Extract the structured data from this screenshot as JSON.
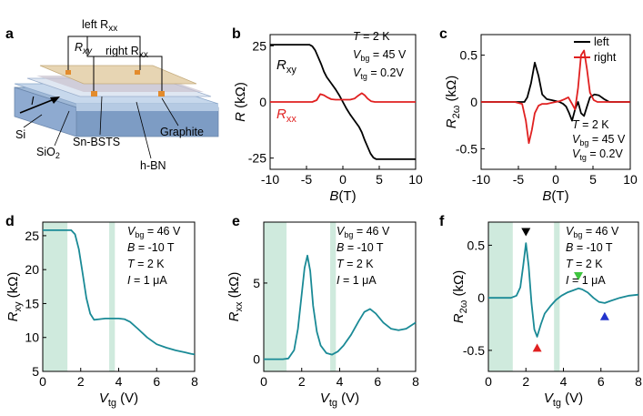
{
  "panel_a": {
    "label": "a",
    "texts": {
      "left_rxx": "left R",
      "left_rxx_sub": "xx",
      "rxy": "R",
      "rxy_sub": "xy",
      "right_rxx": "right R",
      "right_rxx_sub": "xx",
      "si": "Si",
      "sio2": "SiO",
      "sio2_sub": "2",
      "snbsts": "Sn-BSTS",
      "hbn": "h-BN",
      "graphite": "Graphite",
      "current_symbol": "I"
    },
    "colors": {
      "substrate": "#9fb8d6",
      "oxide": "#c7d8ec",
      "hbn": "#dfe7f2",
      "film": "#e7d5b3",
      "contact": "#e38b2c"
    }
  },
  "chart_data": [
    {
      "panel": "b",
      "type": "line",
      "xlabel": "B",
      "xlabel_unit": "(T)",
      "ylabel": "R",
      "ylabel_unit": "(kΩ)",
      "xlim": [
        -10,
        10
      ],
      "ylim": [
        -30,
        30
      ],
      "xticks": [
        -10,
        -5,
        0,
        5,
        10
      ],
      "yticks": [
        -25,
        0,
        25
      ],
      "annotations": [
        "T = 2 K",
        "V_bg = 45 V",
        "V_tg = 0.2V"
      ],
      "series": [
        {
          "name": "R_xy",
          "color": "#000000",
          "x": [
            -10,
            -4.6,
            -4.2,
            -3.8,
            -3.4,
            -3.0,
            -2.6,
            -2.2,
            -1.6,
            -1.0,
            -0.5,
            0,
            0.5,
            1.0,
            1.6,
            2.2,
            2.6,
            3.0,
            3.4,
            3.8,
            4.2,
            4.6,
            10
          ],
          "y": [
            25.5,
            25.5,
            24.8,
            23,
            20,
            17,
            13.5,
            11,
            8.3,
            5.6,
            3,
            0,
            -3,
            -5.6,
            -8.3,
            -11,
            -13.5,
            -17,
            -20,
            -23,
            -24.8,
            -25.5,
            -25.5
          ]
        },
        {
          "name": "R_xx",
          "color": "#e02020",
          "x": [
            -10,
            -4.2,
            -3.6,
            -3.1,
            -2.6,
            -2.1,
            -1.6,
            -1.0,
            0,
            1.0,
            1.6,
            2.1,
            2.6,
            3.0,
            3.4,
            3.9,
            4.4,
            10
          ],
          "y": [
            0,
            0,
            0.8,
            3.5,
            3.0,
            2.0,
            1.2,
            1.0,
            1.0,
            1.0,
            1.5,
            2.8,
            3.9,
            3.0,
            1.5,
            0.3,
            0,
            0
          ]
        }
      ]
    },
    {
      "panel": "c",
      "type": "line",
      "xlabel": "B",
      "xlabel_unit": "(T)",
      "ylabel": "R",
      "ylabel_sub": "2ω",
      "ylabel_unit": "(kΩ)",
      "xlim": [
        -10,
        10
      ],
      "ylim": [
        -0.72,
        0.72
      ],
      "xticks": [
        -10,
        -5,
        0,
        5,
        10
      ],
      "yticks": [
        -0.5,
        0.0,
        0.5
      ],
      "legend": {
        "position": "top-right"
      },
      "annotations": [
        "T = 2 K",
        "V_bg = 45 V",
        "V_tg = 0.2V"
      ],
      "series": [
        {
          "name": "left",
          "color": "#000000",
          "x": [
            -10,
            -5,
            -4.2,
            -3.8,
            -3.3,
            -2.8,
            -2.3,
            -1.8,
            -1.2,
            -0.6,
            0,
            0.5,
            1.0,
            1.4,
            1.8,
            2.2,
            2.6,
            3.0,
            3.4,
            3.8,
            4.2,
            4.6,
            5.2,
            5.8,
            6.5,
            7.2,
            10
          ],
          "y": [
            0,
            0,
            0,
            0.05,
            0.2,
            0.42,
            0.28,
            0.08,
            0.03,
            0.02,
            0.01,
            0,
            -0.02,
            -0.05,
            -0.12,
            -0.2,
            -0.08,
            0,
            -0.12,
            -0.15,
            -0.05,
            0.05,
            0.08,
            0.07,
            0.03,
            0,
            0
          ]
        },
        {
          "name": "right",
          "color": "#e02020",
          "x": [
            -10,
            -5.5,
            -4.5,
            -4.0,
            -3.6,
            -3.2,
            -2.8,
            -2.3,
            -1.8,
            -1.2,
            -0.6,
            0,
            0.6,
            1.2,
            1.7,
            2.2,
            2.6,
            3.0,
            3.4,
            3.8,
            4.2,
            4.6,
            5.1,
            5.6,
            6.2,
            7.0,
            10
          ],
          "y": [
            0,
            0,
            -0.02,
            -0.2,
            -0.44,
            -0.3,
            -0.12,
            -0.04,
            -0.02,
            -0.02,
            -0.01,
            0,
            0.01,
            0.03,
            0.05,
            -0.02,
            -0.08,
            0.15,
            0.5,
            0.55,
            0.35,
            0.1,
            0.02,
            0,
            0,
            0,
            0
          ]
        }
      ]
    },
    {
      "panel": "d",
      "type": "line",
      "xlabel": "V",
      "xlabel_sub": "tg",
      "xlabel_unit": "(V)",
      "ylabel": "R",
      "ylabel_sub": "xy",
      "ylabel_unit": "(kΩ)",
      "xlim": [
        0,
        8
      ],
      "ylim": [
        5,
        27
      ],
      "xticks": [
        0,
        2,
        4,
        6,
        8
      ],
      "yticks": [
        5,
        10,
        15,
        20,
        25
      ],
      "shaded_ranges": [
        [
          0,
          1.3
        ],
        [
          3.5,
          3.8
        ]
      ],
      "shade_color": "#cfeadd",
      "annotations": [
        "V_bg = 46 V",
        "B = -10 T",
        "T = 2 K",
        "I = 1 μA"
      ],
      "series": [
        {
          "name": "",
          "color": "#1a8a96",
          "x": [
            0,
            1.5,
            1.7,
            1.9,
            2.1,
            2.3,
            2.5,
            2.7,
            3.0,
            3.3,
            3.6,
            4.0,
            4.3,
            4.6,
            5.0,
            5.5,
            6.0,
            6.5,
            7.0,
            7.5,
            7.8,
            8.0
          ],
          "y": [
            25.8,
            25.8,
            25.2,
            23,
            19.5,
            15.8,
            13.5,
            12.6,
            12.7,
            12.8,
            12.8,
            12.8,
            12.7,
            12.3,
            11.3,
            10.0,
            9.0,
            8.5,
            8.1,
            7.8,
            7.6,
            7.5
          ]
        }
      ]
    },
    {
      "panel": "e",
      "type": "line",
      "xlabel": "V",
      "xlabel_sub": "tg",
      "xlabel_unit": "(V)",
      "ylabel": "R",
      "ylabel_sub": "xx",
      "ylabel_unit": "(kΩ)",
      "xlim": [
        0,
        8
      ],
      "ylim": [
        -0.8,
        9
      ],
      "xticks": [
        0,
        2,
        4,
        6,
        8
      ],
      "yticks": [
        0,
        5
      ],
      "shaded_ranges": [
        [
          0,
          1.2
        ],
        [
          3.5,
          3.8
        ]
      ],
      "shade_color": "#cfeadd",
      "annotations": [
        "V_bg = 46 V",
        "B = -10 T",
        "T = 2 K",
        "I = 1 μA"
      ],
      "series": [
        {
          "name": "",
          "color": "#1a8a96",
          "x": [
            0,
            1.0,
            1.3,
            1.6,
            1.8,
            2.0,
            2.15,
            2.3,
            2.45,
            2.6,
            2.8,
            3.0,
            3.3,
            3.6,
            3.9,
            4.2,
            4.6,
            5.0,
            5.3,
            5.6,
            5.9,
            6.3,
            6.7,
            7.1,
            7.5,
            8.0
          ],
          "y": [
            0,
            0,
            0.05,
            0.6,
            2.0,
            4.3,
            6.0,
            6.8,
            5.8,
            3.5,
            1.8,
            0.9,
            0.4,
            0.3,
            0.5,
            0.9,
            1.6,
            2.5,
            3.1,
            3.3,
            3.0,
            2.4,
            2.0,
            1.9,
            2.0,
            2.4
          ]
        }
      ]
    },
    {
      "panel": "f",
      "type": "line",
      "xlabel": "V",
      "xlabel_sub": "tg",
      "xlabel_unit": "(V)",
      "ylabel": "R",
      "ylabel_sub": "2ω",
      "ylabel_unit": "(kΩ)",
      "xlim": [
        0,
        8
      ],
      "ylim": [
        -0.7,
        0.72
      ],
      "xticks": [
        0,
        2,
        4,
        6,
        8
      ],
      "yticks": [
        -0.5,
        0.0,
        0.5
      ],
      "shaded_ranges": [
        [
          0,
          1.3
        ],
        [
          3.5,
          3.8
        ]
      ],
      "shade_color": "#cfeadd",
      "annotations": [
        "V_bg = 46 V",
        "B = -10 T",
        "T = 2 K",
        "I = 1 μA"
      ],
      "markers": [
        {
          "x": 2.0,
          "y": 0.62,
          "color": "#000000",
          "direction": "down"
        },
        {
          "x": 2.6,
          "y": -0.47,
          "color": "#e02020",
          "direction": "up"
        },
        {
          "x": 4.8,
          "y": 0.2,
          "color": "#3ec43e",
          "direction": "down"
        },
        {
          "x": 6.2,
          "y": -0.17,
          "color": "#2233cc",
          "direction": "up"
        }
      ],
      "series": [
        {
          "name": "",
          "color": "#1a8a96",
          "x": [
            0,
            1.2,
            1.5,
            1.7,
            1.85,
            2.0,
            2.15,
            2.3,
            2.45,
            2.6,
            2.8,
            3.0,
            3.3,
            3.6,
            3.9,
            4.2,
            4.5,
            4.8,
            5.0,
            5.3,
            5.6,
            5.9,
            6.2,
            6.5,
            7.0,
            7.5,
            8.0
          ],
          "y": [
            0,
            0,
            0.02,
            0.1,
            0.3,
            0.52,
            0.3,
            -0.05,
            -0.3,
            -0.37,
            -0.25,
            -0.15,
            -0.08,
            -0.02,
            0.02,
            0.05,
            0.07,
            0.09,
            0.08,
            0.05,
            0.0,
            -0.04,
            -0.05,
            -0.03,
            0.0,
            0.02,
            0.03
          ]
        }
      ]
    }
  ]
}
